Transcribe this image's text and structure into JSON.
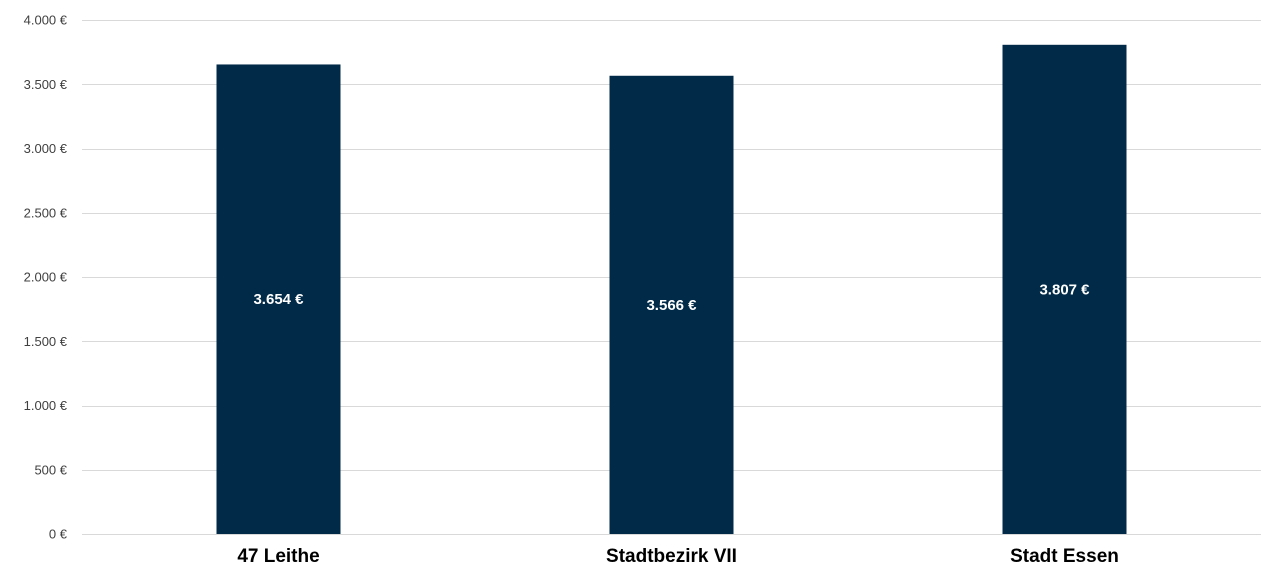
{
  "chart_data": {
    "type": "bar",
    "categories": [
      "47 Leithe",
      "Stadtbezirk VII",
      "Stadt Essen"
    ],
    "values": [
      3654,
      3566,
      3807
    ],
    "data_labels": [
      "3.654 €",
      "3.566 €",
      "3.807 €"
    ],
    "title": "",
    "xlabel": "",
    "ylabel": "",
    "ylim": [
      0,
      4000
    ],
    "yticks": [
      0,
      500,
      1000,
      1500,
      2000,
      2500,
      3000,
      3500,
      4000
    ],
    "ytick_labels": [
      "0 €",
      "500 €",
      "1.000 €",
      "1.500 €",
      "2.000 €",
      "2.500 €",
      "3.000 €",
      "3.500 €",
      "4.000 €"
    ],
    "grid": true,
    "legend": "none",
    "bar_color": "#002a48"
  }
}
